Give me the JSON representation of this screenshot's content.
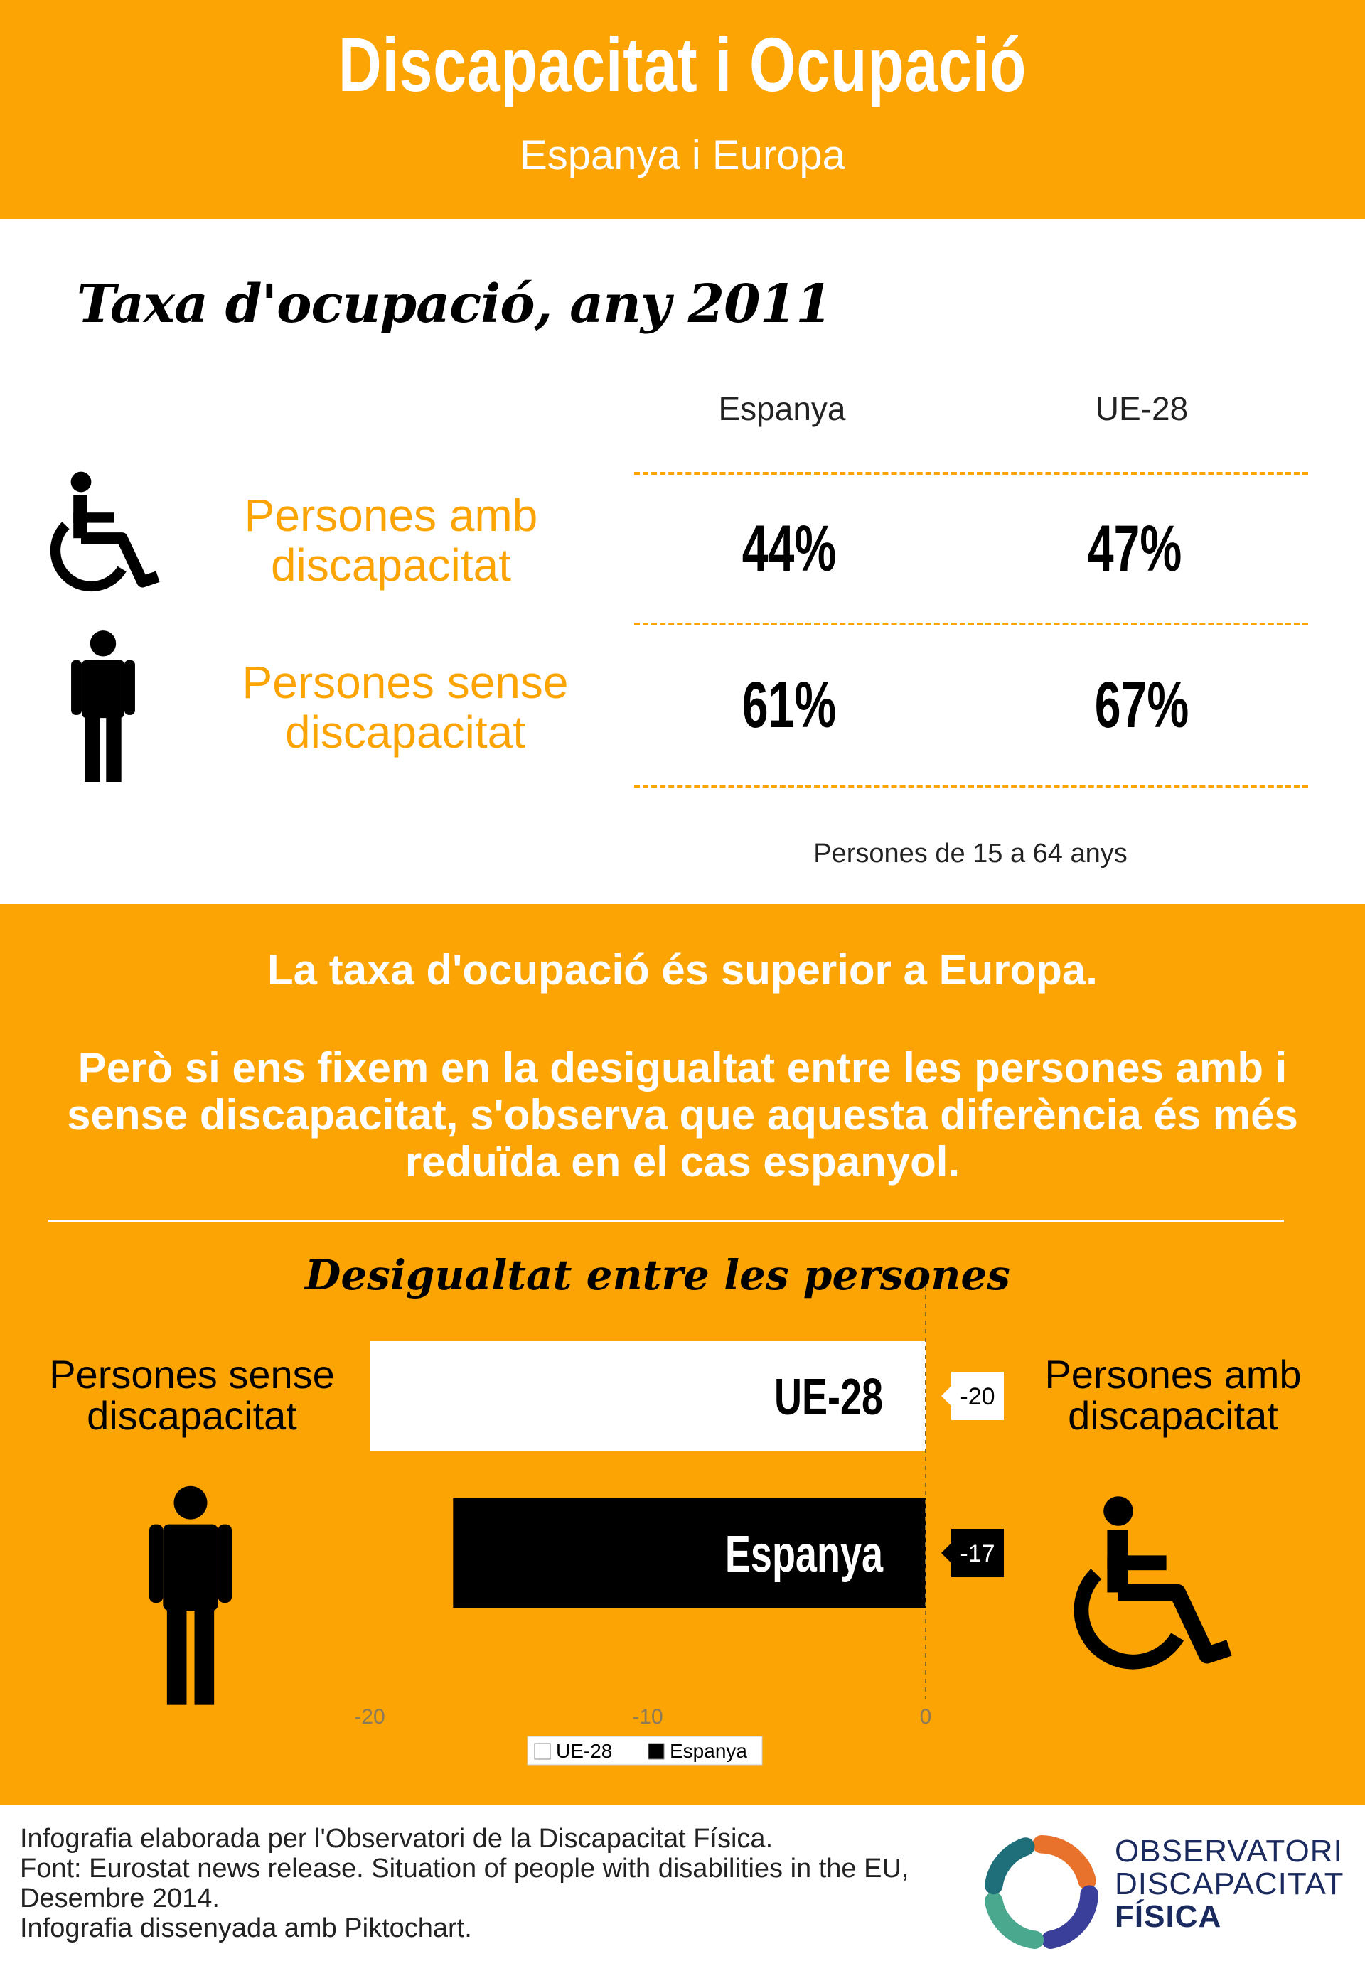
{
  "header": {
    "title": "Discapacitat i Ocupació",
    "subtitle": "Espanya i Europa"
  },
  "rate_section": {
    "title": "Taxa d'ocupació, any 2011",
    "columns": [
      "Espanya",
      "UE-28"
    ],
    "rows": [
      {
        "label_line1": "Persones amb",
        "label_line2": "discapacitat",
        "icon": "wheelchair-icon",
        "values": [
          "44%",
          "47%"
        ]
      },
      {
        "label_line1": "Persones sense",
        "label_line2": "discapacitat",
        "icon": "person-icon",
        "values": [
          "61%",
          "67%"
        ]
      }
    ],
    "note": "Persones de 15 a 64 anys"
  },
  "message": {
    "line1": "La taxa d'ocupació és superior a Europa.",
    "paragraph": "Però si ens fixem en la desigualtat entre les persones amb i sense discapacitat, s'observa que aquesta diferència és més reduïda en el cas espanyol."
  },
  "chart_side_labels": {
    "left_line1": "Persones sense",
    "left_line2": "discapacitat",
    "right_line1": "Persones amb",
    "right_line2": "discapacitat"
  },
  "chart_data": {
    "type": "bar",
    "orientation": "horizontal",
    "title": "Desigualtat entre les persones",
    "categories": [
      "UE-28",
      "Espanya"
    ],
    "values": [
      -20,
      -17
    ],
    "data_labels": [
      "-20",
      "-17"
    ],
    "bar_colors": [
      "#ffffff",
      "#000000"
    ],
    "bar_text_colors": [
      "#000000",
      "#ffffff"
    ],
    "xlim": [
      -20,
      0
    ],
    "xticks": [
      -20,
      -10,
      0
    ],
    "legend": {
      "position": "bottom",
      "entries": [
        "UE-28",
        "Espanya"
      ]
    },
    "grid": false
  },
  "footer": {
    "line1": "Infografia elaborada per l'Observatori de la Discapacitat Física.",
    "line2": "Font: Eurostat news release. Situation of people with disabilities in the EU,",
    "line3": "Desembre 2014.",
    "line4": "Infografia dissenyada amb Piktochart.",
    "brand_line1": "OBSERVATORI",
    "brand_line2": "DISCAPACITAT",
    "brand_line3": "FÍSICA"
  },
  "colors": {
    "accent": "#fca404",
    "dark": "#000000",
    "brand": "#1a2a5e"
  }
}
